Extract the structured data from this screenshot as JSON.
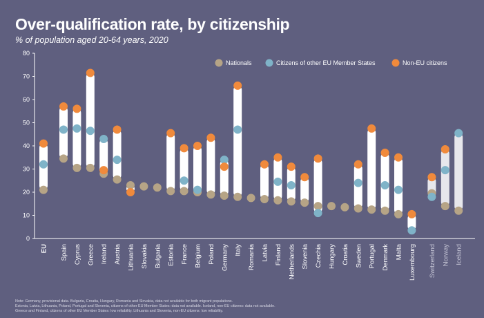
{
  "chart_data": {
    "type": "dot-range",
    "title": "Over-qualification rate, by citizenship",
    "subtitle": "% of population aged 20-64 years, 2020",
    "ylim": [
      0,
      80
    ],
    "yticks": [
      0,
      10,
      20,
      30,
      40,
      50,
      60,
      70,
      80
    ],
    "grid": false,
    "legend_position": "top-right",
    "series": [
      {
        "key": "nationals",
        "name": "Nationals",
        "color": "#b6a486"
      },
      {
        "key": "eu",
        "name": "Citizens of other EU Member States",
        "color": "#7fb3c8"
      },
      {
        "key": "noneu",
        "name": "Non-EU citizens",
        "color": "#f08a3c"
      }
    ],
    "categories": [
      {
        "label": "EU",
        "bold": true,
        "muted": false,
        "gap_after": true,
        "nationals": 21,
        "eu": 32,
        "noneu": 41
      },
      {
        "label": "Spain",
        "bold": false,
        "muted": false,
        "gap_after": false,
        "nationals": 34.5,
        "eu": 47,
        "noneu": 57
      },
      {
        "label": "Cyprus",
        "bold": false,
        "muted": false,
        "gap_after": false,
        "nationals": 30.5,
        "eu": 47.5,
        "noneu": 56
      },
      {
        "label": "Greece",
        "bold": false,
        "muted": false,
        "gap_after": false,
        "nationals": 30.5,
        "eu": 46.5,
        "noneu": 71.5
      },
      {
        "label": "Ireland",
        "bold": false,
        "muted": false,
        "gap_after": false,
        "nationals": 28,
        "eu": 43,
        "noneu": 29.5
      },
      {
        "label": "Austria",
        "bold": false,
        "muted": false,
        "gap_after": false,
        "nationals": 25.5,
        "eu": 34,
        "noneu": 47
      },
      {
        "label": "Lithuania",
        "bold": false,
        "muted": false,
        "gap_after": false,
        "nationals": 23,
        "eu": null,
        "noneu": 20
      },
      {
        "label": "Slovakia",
        "bold": false,
        "muted": false,
        "gap_after": false,
        "nationals": 22.5,
        "eu": null,
        "noneu": null
      },
      {
        "label": "Bulgaria",
        "bold": false,
        "muted": false,
        "gap_after": false,
        "nationals": 22,
        "eu": null,
        "noneu": null
      },
      {
        "label": "Estonia",
        "bold": false,
        "muted": false,
        "gap_after": false,
        "nationals": 20.5,
        "eu": null,
        "noneu": 45.5
      },
      {
        "label": "France",
        "bold": false,
        "muted": false,
        "gap_after": false,
        "nationals": 20.5,
        "eu": 25,
        "noneu": 39
      },
      {
        "label": "Belgium",
        "bold": false,
        "muted": false,
        "gap_after": false,
        "nationals": 20,
        "eu": 21,
        "noneu": 40
      },
      {
        "label": "Poland",
        "bold": false,
        "muted": false,
        "gap_after": false,
        "nationals": 19,
        "eu": null,
        "noneu": 43.5
      },
      {
        "label": "Germany",
        "bold": false,
        "muted": false,
        "gap_after": false,
        "nationals": 18.5,
        "eu": 34,
        "noneu": 31
      },
      {
        "label": "Italy",
        "bold": false,
        "muted": false,
        "gap_after": false,
        "nationals": 18,
        "eu": 47,
        "noneu": 66
      },
      {
        "label": "Romania",
        "bold": false,
        "muted": false,
        "gap_after": false,
        "nationals": 17.5,
        "eu": null,
        "noneu": null
      },
      {
        "label": "Latvia",
        "bold": false,
        "muted": false,
        "gap_after": false,
        "nationals": 17,
        "eu": null,
        "noneu": 32
      },
      {
        "label": "Finland",
        "bold": false,
        "muted": false,
        "gap_after": false,
        "nationals": 16.5,
        "eu": 24.5,
        "noneu": 35
      },
      {
        "label": "Netherlands",
        "bold": false,
        "muted": false,
        "gap_after": false,
        "nationals": 16,
        "eu": 23,
        "noneu": 31
      },
      {
        "label": "Slovenia",
        "bold": false,
        "muted": false,
        "gap_after": false,
        "nationals": 15.5,
        "eu": null,
        "noneu": 26.5
      },
      {
        "label": "Czechia",
        "bold": false,
        "muted": false,
        "gap_after": false,
        "nationals": 14,
        "eu": 11,
        "noneu": 34.5
      },
      {
        "label": "Hungary",
        "bold": false,
        "muted": false,
        "gap_after": false,
        "nationals": 14,
        "eu": null,
        "noneu": null
      },
      {
        "label": "Croatia",
        "bold": false,
        "muted": false,
        "gap_after": false,
        "nationals": 13.5,
        "eu": null,
        "noneu": null
      },
      {
        "label": "Sweden",
        "bold": false,
        "muted": false,
        "gap_after": false,
        "nationals": 13,
        "eu": 24,
        "noneu": 32
      },
      {
        "label": "Portugal",
        "bold": false,
        "muted": false,
        "gap_after": false,
        "nationals": 12.5,
        "eu": null,
        "noneu": 47.5
      },
      {
        "label": "Denmark",
        "bold": false,
        "muted": false,
        "gap_after": false,
        "nationals": 12,
        "eu": 23,
        "noneu": 37
      },
      {
        "label": "Malta",
        "bold": false,
        "muted": false,
        "gap_after": false,
        "nationals": 10.5,
        "eu": 21,
        "noneu": 35
      },
      {
        "label": "Luxembourg",
        "bold": false,
        "muted": false,
        "gap_after": true,
        "nationals": null,
        "eu": 3.5,
        "noneu": 10.5
      },
      {
        "label": "Switzerland",
        "bold": false,
        "muted": true,
        "gap_after": false,
        "nationals": 19.5,
        "eu": 18,
        "noneu": 26.5
      },
      {
        "label": "Norway",
        "bold": false,
        "muted": true,
        "gap_after": false,
        "nationals": 14,
        "eu": 29.5,
        "noneu": 38.5
      },
      {
        "label": "Iceland",
        "bold": false,
        "muted": true,
        "gap_after": false,
        "nationals": 12,
        "eu": 45.5,
        "noneu": null
      }
    ]
  },
  "notes": [
    "Note: Germany, provisional data. Bulgaria, Croatia, Hungary, Romania and Slovakia, data not available for both migrant populations.",
    "Estonia, Latvia, Lithuania, Poland, Portugal and Slovenia, citizens of other EU Member States: data not available. Iceland, non-EU citizens: data not available.",
    "Greece and Finland, citizens of other EU Member States: low reliability. Lithuania and Slovenia, non-EU citizens: low reliability."
  ]
}
